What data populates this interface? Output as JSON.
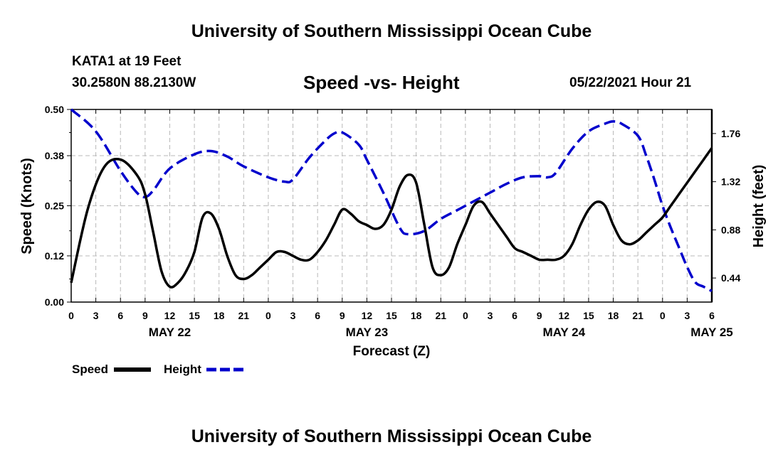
{
  "header": {
    "title": "University of Southern Mississippi Ocean Cube",
    "station": "KATA1 at 19 Feet",
    "coordinates": "30.2580N  88.2130W",
    "subtitle": "Speed -vs- Height",
    "datetime": "05/22/2021 Hour 21"
  },
  "footer": {
    "title": "University of Southern Mississippi Ocean Cube"
  },
  "chart_data": {
    "type": "line",
    "title": "Speed -vs- Height",
    "xlabel": "Forecast (Z)",
    "ylabel": "Speed (Knots)",
    "y2label": "Height (feet)",
    "x_ticks": [
      "0",
      "3",
      "6",
      "9",
      "12",
      "15",
      "18",
      "21",
      "0",
      "3",
      "6",
      "9",
      "12",
      "15",
      "18",
      "21",
      "0",
      "3",
      "6",
      "9",
      "12",
      "15",
      "18",
      "21",
      "0",
      "3",
      "6"
    ],
    "date_labels": [
      {
        "label": "MAY 22",
        "hour": 12
      },
      {
        "label": "MAY 23",
        "hour": 36
      },
      {
        "label": "MAY 24",
        "hour": 60
      },
      {
        "label": "MAY 25",
        "hour": 78
      }
    ],
    "x_range_hours": [
      0,
      78
    ],
    "ylim": [
      0.0,
      0.5
    ],
    "y_ticks": [
      "0.00",
      "0.12",
      "0.25",
      "0.38",
      "0.50"
    ],
    "y2lim": [
      0.22,
      1.98
    ],
    "y2_ticks": [
      "0.44",
      "0.88",
      "1.32",
      "1.76"
    ],
    "grid": true,
    "legend_position": "bottom-left",
    "series": [
      {
        "name": "Speed",
        "axis": "left",
        "color": "#000000",
        "style": "solid",
        "x": [
          0,
          2,
          4,
          6,
          8,
          9,
          10,
          11,
          12,
          13,
          14,
          15,
          16,
          17,
          18,
          19,
          20,
          21,
          22,
          23,
          24,
          25,
          26,
          27,
          28,
          29,
          30,
          31,
          32,
          33,
          34,
          35,
          36,
          37,
          38,
          39,
          40,
          41,
          42,
          43,
          44,
          45,
          46,
          47,
          48,
          49,
          50,
          51,
          52,
          53,
          54,
          55,
          56,
          57,
          58,
          59,
          60,
          61,
          62,
          63,
          64,
          65,
          66,
          67,
          68,
          69,
          70,
          71,
          72,
          73,
          74,
          75,
          76,
          77,
          78
        ],
        "values": [
          0.05,
          0.24,
          0.35,
          0.37,
          0.33,
          0.28,
          0.18,
          0.08,
          0.04,
          0.05,
          0.08,
          0.13,
          0.22,
          0.23,
          0.19,
          0.12,
          0.07,
          0.06,
          0.07,
          0.09,
          0.11,
          0.13,
          0.13,
          0.12,
          0.11,
          0.11,
          0.13,
          0.16,
          0.2,
          0.24,
          0.23,
          0.21,
          0.2,
          0.19,
          0.2,
          0.24,
          0.3,
          0.33,
          0.31,
          0.2,
          0.09,
          0.07,
          0.09,
          0.15,
          0.2,
          0.25,
          0.26,
          0.23,
          0.2,
          0.17,
          0.14,
          0.13,
          0.12,
          0.11,
          0.11,
          0.11,
          0.12,
          0.15,
          0.2,
          0.24,
          0.26,
          0.25,
          0.2,
          0.16,
          0.15,
          0.16,
          0.18,
          0.2,
          0.22,
          0.25,
          0.28,
          0.31,
          0.34,
          0.37,
          0.4
        ]
      },
      {
        "name": "Height",
        "axis": "right",
        "color": "#0000cc",
        "style": "dashed",
        "x": [
          0,
          3,
          6,
          8,
          9,
          10,
          12,
          15,
          17,
          19,
          21,
          24,
          26,
          27,
          29,
          31,
          32,
          33,
          35,
          36,
          38,
          40,
          41,
          43,
          45,
          47,
          49,
          51,
          53,
          55,
          57,
          58,
          59,
          61,
          63,
          65,
          66,
          67,
          69,
          70,
          71,
          72,
          73,
          74,
          75,
          76,
          77,
          78
        ],
        "values": [
          1.98,
          1.78,
          1.42,
          1.22,
          1.18,
          1.24,
          1.44,
          1.57,
          1.6,
          1.55,
          1.46,
          1.36,
          1.32,
          1.34,
          1.54,
          1.7,
          1.76,
          1.77,
          1.66,
          1.52,
          1.22,
          0.9,
          0.84,
          0.87,
          0.98,
          1.06,
          1.14,
          1.22,
          1.3,
          1.36,
          1.37,
          1.36,
          1.4,
          1.62,
          1.78,
          1.85,
          1.87,
          1.85,
          1.74,
          1.56,
          1.34,
          1.1,
          0.9,
          0.72,
          0.54,
          0.4,
          0.36,
          0.32
        ]
      }
    ]
  }
}
